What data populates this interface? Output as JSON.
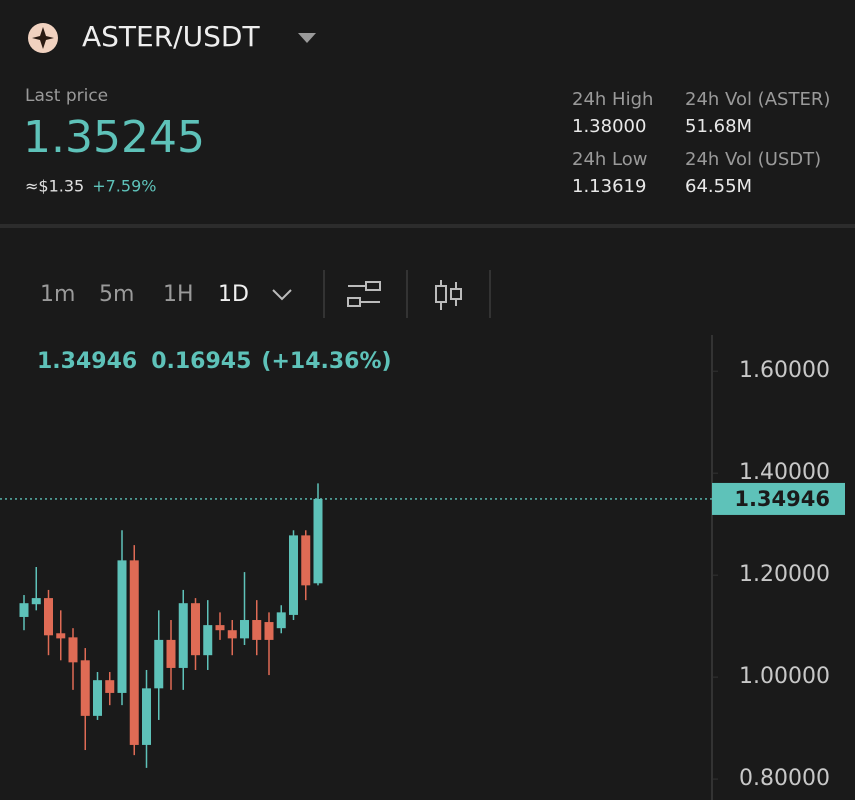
{
  "header": {
    "pair": "ASTER/USDT"
  },
  "ticker": {
    "last_price_label": "Last price",
    "last_price": "1.35245",
    "usd_price": "≈$1.35",
    "change_pct": "+7.59%",
    "stats": [
      {
        "label": "24h High",
        "value": "1.38000"
      },
      {
        "label": "24h Vol (ASTER)",
        "value": "51.68M"
      },
      {
        "label": "24h Low",
        "value": "1.13619"
      },
      {
        "label": "24h Vol (USDT)",
        "value": "64.55M"
      }
    ]
  },
  "toolbar": {
    "intervals": [
      "1m",
      "5m",
      "1H",
      "1D"
    ],
    "active": "1D"
  },
  "chart_data": {
    "type": "candlestick",
    "info": [
      "1.34946",
      "0.16945",
      "(+14.36%)"
    ],
    "up_color": "#5ec2b9",
    "down_color": "#df6b55",
    "ylim": [
      0.759,
      1.671
    ],
    "yticks": [
      {
        "value": 0.8,
        "label": "0.80000"
      },
      {
        "value": 1.0,
        "label": "1.00000"
      },
      {
        "value": 1.2,
        "label": "1.20000"
      },
      {
        "value": 1.4,
        "label": "1.40000"
      },
      {
        "value": 1.6,
        "label": "1.60000"
      }
    ],
    "current": {
      "value": 1.34946,
      "label": "1.34946"
    },
    "candles": [
      {
        "open": 1.118,
        "high": 1.161,
        "low": 1.092,
        "close": 1.145
      },
      {
        "open": 1.143,
        "high": 1.216,
        "low": 1.131,
        "close": 1.155
      },
      {
        "open": 1.155,
        "high": 1.171,
        "low": 1.043,
        "close": 1.082
      },
      {
        "open": 1.086,
        "high": 1.131,
        "low": 1.033,
        "close": 1.076
      },
      {
        "open": 1.078,
        "high": 1.096,
        "low": 0.975,
        "close": 1.029
      },
      {
        "open": 1.033,
        "high": 1.057,
        "low": 0.857,
        "close": 0.924
      },
      {
        "open": 0.924,
        "high": 1.01,
        "low": 0.916,
        "close": 0.994
      },
      {
        "open": 0.994,
        "high": 1.01,
        "low": 0.945,
        "close": 0.969
      },
      {
        "open": 0.969,
        "high": 1.288,
        "low": 0.945,
        "close": 1.229
      },
      {
        "open": 1.229,
        "high": 1.259,
        "low": 0.847,
        "close": 0.867
      },
      {
        "open": 0.867,
        "high": 1.014,
        "low": 0.822,
        "close": 0.978
      },
      {
        "open": 0.978,
        "high": 1.131,
        "low": 0.916,
        "close": 1.073
      },
      {
        "open": 1.073,
        "high": 1.112,
        "low": 0.975,
        "close": 1.018
      },
      {
        "open": 1.018,
        "high": 1.171,
        "low": 0.975,
        "close": 1.145
      },
      {
        "open": 1.145,
        "high": 1.155,
        "low": 1.014,
        "close": 1.043
      },
      {
        "open": 1.043,
        "high": 1.151,
        "low": 1.014,
        "close": 1.102
      },
      {
        "open": 1.102,
        "high": 1.127,
        "low": 1.073,
        "close": 1.092
      },
      {
        "open": 1.092,
        "high": 1.112,
        "low": 1.043,
        "close": 1.076
      },
      {
        "open": 1.076,
        "high": 1.206,
        "low": 1.063,
        "close": 1.112
      },
      {
        "open": 1.112,
        "high": 1.151,
        "low": 1.043,
        "close": 1.073
      },
      {
        "open": 1.108,
        "high": 1.127,
        "low": 1.004,
        "close": 1.073
      },
      {
        "open": 1.096,
        "high": 1.141,
        "low": 1.086,
        "close": 1.127
      },
      {
        "open": 1.122,
        "high": 1.288,
        "low": 1.112,
        "close": 1.278
      },
      {
        "open": 1.278,
        "high": 1.288,
        "low": 1.151,
        "close": 1.18
      },
      {
        "open": 1.184,
        "high": 1.38,
        "low": 1.18,
        "close": 1.34946
      }
    ]
  }
}
